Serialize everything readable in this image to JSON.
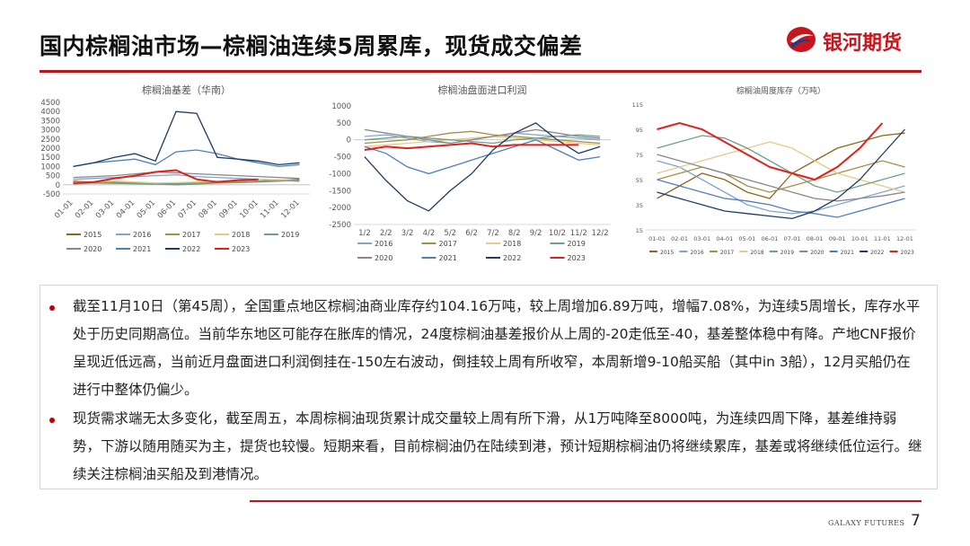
{
  "header": {
    "title": "国内棕榈油市场—棕榈油连续5周累库，现货成交偏差",
    "brand_name": "银河期货",
    "accent_color": "#b8171c"
  },
  "chart_data": [
    {
      "type": "line",
      "title": "棕榈油基差（华南）",
      "x": [
        "01-01",
        "02-01",
        "03-01",
        "04-01",
        "05-01",
        "06-01",
        "07-01",
        "08-01",
        "09-01",
        "10-01",
        "11-01",
        "12-01"
      ],
      "yticks": [
        "4500",
        "4000",
        "3500",
        "3000",
        "2500",
        "2000",
        "1500",
        "1000",
        "500",
        "0",
        "-500"
      ],
      "ylim": [
        -500,
        4500
      ],
      "legend": [
        "2015",
        "2016",
        "2017",
        "2018",
        "2019",
        "2020",
        "2021",
        "2022",
        "2023"
      ],
      "series": [
        {
          "name": "2015",
          "color": "#8B6A1F",
          "values": [
            200,
            150,
            120,
            100,
            80,
            60,
            90,
            120,
            150,
            200,
            250,
            300
          ]
        },
        {
          "name": "2016",
          "color": "#7FA7CE",
          "values": [
            300,
            350,
            400,
            450,
            500,
            550,
            450,
            400,
            350,
            300,
            250,
            200
          ]
        },
        {
          "name": "2017",
          "color": "#A39045",
          "values": [
            100,
            120,
            150,
            100,
            50,
            0,
            50,
            100,
            150,
            200,
            250,
            200
          ]
        },
        {
          "name": "2018",
          "color": "#E8C987",
          "values": [
            150,
            180,
            200,
            150,
            100,
            120,
            150,
            200,
            250,
            300,
            280,
            250
          ]
        },
        {
          "name": "2019",
          "color": "#6FA08A",
          "values": [
            50,
            100,
            80,
            60,
            40,
            60,
            80,
            100,
            120,
            150,
            200,
            250
          ]
        },
        {
          "name": "2020",
          "color": "#888888",
          "values": [
            400,
            450,
            500,
            600,
            700,
            650,
            600,
            550,
            500,
            450,
            400,
            350
          ]
        },
        {
          "name": "2021",
          "color": "#4E7FBD",
          "values": [
            1000,
            1200,
            1300,
            1400,
            1100,
            1800,
            1900,
            1700,
            1400,
            1200,
            1000,
            1100
          ]
        },
        {
          "name": "2022",
          "color": "#1F3B66",
          "values": [
            1000,
            1200,
            1500,
            1700,
            1300,
            4000,
            3900,
            1500,
            1400,
            1300,
            1100,
            1200
          ]
        },
        {
          "name": "2023",
          "color": "#E0201B",
          "values": [
            100,
            150,
            350,
            500,
            700,
            800,
            300,
            150,
            250,
            300,
            null,
            null
          ]
        }
      ]
    },
    {
      "type": "line",
      "title": "棕榈油盘面进口利润",
      "x": [
        "1/2",
        "2/2",
        "3/2",
        "4/2",
        "5/2",
        "6/2",
        "7/2",
        "8/2",
        "9/2",
        "10/2",
        "11/2",
        "12/2"
      ],
      "yticks": [
        "1000",
        "500",
        "0",
        "-500",
        "-1000",
        "-1500",
        "-2000",
        "-2500"
      ],
      "ylim": [
        -2500,
        1000
      ],
      "legend": [
        "2016",
        "2017",
        "2018",
        "2019",
        "2020",
        "2021",
        "2022",
        "2023"
      ],
      "series": [
        {
          "name": "2016",
          "color": "#7FA7CE",
          "values": [
            100,
            150,
            50,
            -50,
            -100,
            0,
            100,
            200,
            150,
            100,
            50,
            0
          ]
        },
        {
          "name": "2017",
          "color": "#A39045",
          "values": [
            -100,
            -50,
            0,
            100,
            200,
            250,
            150,
            100,
            50,
            0,
            -50,
            -100
          ]
        },
        {
          "name": "2018",
          "color": "#E8C987",
          "values": [
            -200,
            -150,
            -100,
            -50,
            0,
            50,
            100,
            50,
            0,
            -50,
            -100,
            -150
          ]
        },
        {
          "name": "2019",
          "color": "#6FA08A",
          "values": [
            0,
            50,
            100,
            50,
            0,
            -50,
            -100,
            0,
            50,
            100,
            150,
            100
          ]
        },
        {
          "name": "2020",
          "color": "#888888",
          "values": [
            300,
            200,
            100,
            0,
            -100,
            0,
            100,
            200,
            300,
            200,
            100,
            50
          ]
        },
        {
          "name": "2021",
          "color": "#4E7FBD",
          "values": [
            -200,
            -400,
            -800,
            -1000,
            -800,
            -600,
            -400,
            -200,
            0,
            -300,
            -600,
            -500
          ]
        },
        {
          "name": "2022",
          "color": "#1F3B66",
          "values": [
            -500,
            -1200,
            -1800,
            -2100,
            -1500,
            -1000,
            -300,
            200,
            500,
            0,
            -400,
            -200
          ]
        },
        {
          "name": "2023",
          "color": "#E0201B",
          "values": [
            -300,
            -200,
            -250,
            -200,
            -150,
            -100,
            -200,
            -150,
            -150,
            -150,
            -150,
            null
          ]
        }
      ]
    },
    {
      "type": "line",
      "title": "棕榈油周度库存（万吨）",
      "x": [
        "01-01",
        "02-01",
        "03-01",
        "04-01",
        "05-01",
        "06-01",
        "07-01",
        "08-01",
        "09-01",
        "10-01",
        "11-01",
        "12-01"
      ],
      "yticks": [
        "115",
        "95",
        "75",
        "55",
        "35",
        "15"
      ],
      "ylim": [
        15,
        115
      ],
      "legend": [
        "2015",
        "2016",
        "2017",
        "2018",
        "2019",
        "2020",
        "2021",
        "2022",
        "2023"
      ],
      "series": [
        {
          "name": "2015",
          "color": "#8B6A1F",
          "values": [
            40,
            50,
            60,
            55,
            45,
            40,
            60,
            70,
            80,
            85,
            90,
            92
          ]
        },
        {
          "name": "2016",
          "color": "#7FA7CE",
          "values": [
            70,
            65,
            55,
            45,
            35,
            30,
            28,
            30,
            35,
            40,
            45,
            50
          ]
        },
        {
          "name": "2017",
          "color": "#A39045",
          "values": [
            55,
            60,
            65,
            60,
            50,
            45,
            50,
            55,
            60,
            65,
            70,
            65
          ]
        },
        {
          "name": "2018",
          "color": "#E8C987",
          "values": [
            60,
            65,
            70,
            75,
            80,
            85,
            80,
            70,
            60,
            55,
            50,
            45
          ]
        },
        {
          "name": "2019",
          "color": "#6FA08A",
          "values": [
            80,
            85,
            90,
            88,
            80,
            70,
            60,
            50,
            45,
            50,
            55,
            60
          ]
        },
        {
          "name": "2020",
          "color": "#888888",
          "values": [
            75,
            70,
            65,
            60,
            55,
            50,
            45,
            40,
            38,
            40,
            42,
            45
          ]
        },
        {
          "name": "2021",
          "color": "#4E7FBD",
          "values": [
            55,
            50,
            45,
            40,
            38,
            35,
            30,
            28,
            25,
            30,
            35,
            40
          ]
        },
        {
          "name": "2022",
          "color": "#1F3B66",
          "values": [
            45,
            40,
            35,
            30,
            28,
            26,
            24,
            30,
            40,
            55,
            75,
            95
          ]
        },
        {
          "name": "2023",
          "color": "#E0201B",
          "values": [
            95,
            100,
            95,
            85,
            75,
            65,
            60,
            55,
            65,
            80,
            100,
            null
          ]
        }
      ]
    }
  ],
  "body": {
    "paragraph1": "截至11月10日（第45周），全国重点地区棕榈油商业库存约104.16万吨，较上周增加6.89万吨，增幅7.08%，为连续5周增长，库存水平处于历史同期高位。当前华东地区可能存在胀库的情况，24度棕榈油基差报价从上周的-20走低至-40，基差整体稳中有降。产地CNF报价呈现近低远高，当前近月盘面进口利润倒挂在-150左右波动，倒挂较上周有所收窄，本周新增9-10船买船（其中in 3船），12月买船仍在进行中整体仍偏少。",
    "paragraph2": "现货需求端无太多变化，截至周五，本周棕榈油现货累计成交量较上周有所下滑，从1万吨降至8000吨，为连续四周下降，基差维持弱势，下游以随用随买为主，提货也较慢。短期来看，目前棕榈油仍在陆续到港，预计短期棕榈油仍将继续累库，基差或将继续低位运行。继续关注棕榈油买船及到港情况。"
  },
  "footer": {
    "brand": "GALAXY FUTURES",
    "page_number": "7"
  }
}
